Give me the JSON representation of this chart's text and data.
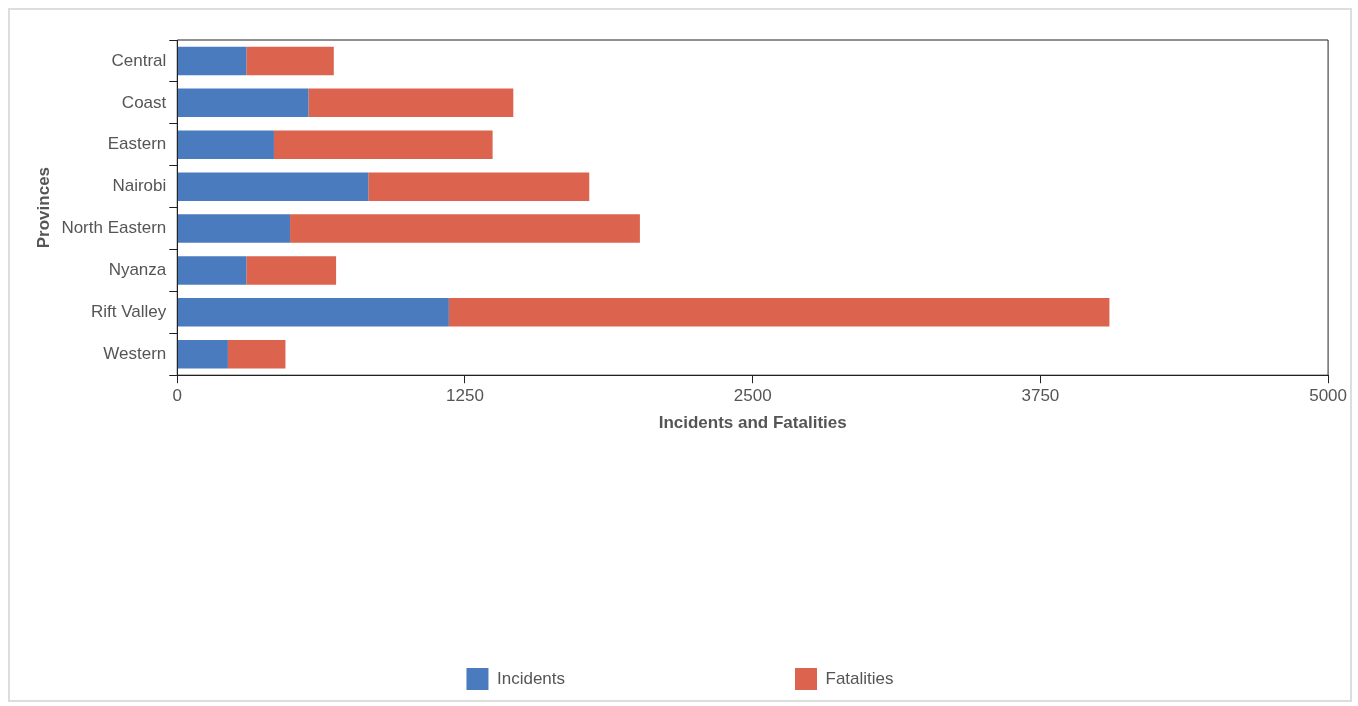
{
  "chart_data": {
    "type": "bar",
    "orientation": "horizontal",
    "stacked": true,
    "xlabel": "Incidents and Fatalities",
    "ylabel": "Provinces",
    "categories": [
      "Central",
      "Coast",
      "Eastern",
      "Nairobi",
      "North Eastern",
      "Nyanza",
      "Rift Valley",
      "Western"
    ],
    "series": [
      {
        "name": "Incidents",
        "color": "#4a7bbf",
        "values": [
          300,
          570,
          420,
          830,
          490,
          300,
          1180,
          220
        ]
      },
      {
        "name": "Fatalities",
        "color": "#dc634d",
        "values": [
          380,
          890,
          950,
          960,
          1520,
          390,
          2870,
          250
        ]
      }
    ],
    "xlim": [
      0,
      5000
    ],
    "xticks": [
      0,
      1250,
      2500,
      3750,
      5000
    ],
    "grid": false,
    "legend": "bottom"
  }
}
